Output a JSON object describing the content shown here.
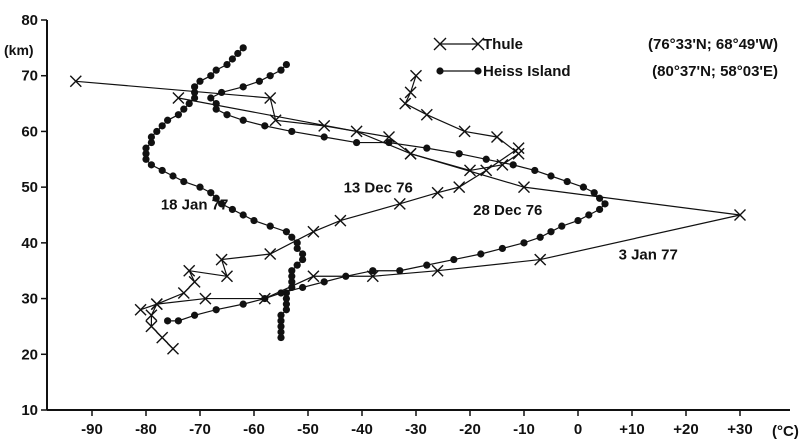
{
  "chart_data": {
    "type": "line",
    "xlabel": "",
    "ylabel": "(km)",
    "x_unit": "(°C)",
    "xlim": [
      -97,
      32
    ],
    "ylim": [
      10,
      80
    ],
    "x_ticks": [
      {
        "value": -90,
        "label": "-90"
      },
      {
        "value": -80,
        "label": "-80"
      },
      {
        "value": -70,
        "label": "-70"
      },
      {
        "value": -60,
        "label": "-60"
      },
      {
        "value": -50,
        "label": "-50"
      },
      {
        "value": -40,
        "label": "-40"
      },
      {
        "value": -30,
        "label": "-30"
      },
      {
        "value": -20,
        "label": "-20"
      },
      {
        "value": -10,
        "label": "-10"
      },
      {
        "value": 0,
        "label": "0"
      },
      {
        "value": 10,
        "label": "+10"
      },
      {
        "value": 20,
        "label": "+20"
      },
      {
        "value": 30,
        "label": "+30"
      }
    ],
    "y_ticks": [
      {
        "value": 10,
        "label": "10"
      },
      {
        "value": 20,
        "label": "20"
      },
      {
        "value": 30,
        "label": "30"
      },
      {
        "value": 40,
        "label": "40"
      },
      {
        "value": 50,
        "label": "50"
      },
      {
        "value": 60,
        "label": "60"
      },
      {
        "value": 70,
        "label": "70"
      },
      {
        "value": 80,
        "label": "80"
      }
    ],
    "legend": [
      {
        "name": "Thule",
        "coords": "(76°33'N; 68°49'W)",
        "marker": "cross"
      },
      {
        "name": "Heiss Island",
        "coords": "(80°37'N; 58°03'E)",
        "marker": "dot"
      }
    ],
    "series": [
      {
        "label": "13 Dec 76",
        "station": "Thule",
        "marker": "cross",
        "points": [
          [
            -75,
            21
          ],
          [
            -77,
            23
          ],
          [
            -79,
            25
          ],
          [
            -79,
            27
          ],
          [
            -78,
            29
          ],
          [
            -73,
            31
          ],
          [
            -71,
            33
          ],
          [
            -72,
            35
          ],
          [
            -65,
            34
          ],
          [
            -66,
            37
          ],
          [
            -57,
            38
          ],
          [
            -49,
            42
          ],
          [
            -44,
            44
          ],
          [
            -33,
            47
          ],
          [
            -26,
            49
          ],
          [
            -22,
            50
          ],
          [
            -17,
            53
          ],
          [
            -11,
            57
          ]
        ]
      },
      {
        "label": "18 Jan 77",
        "station": "Heiss Island",
        "marker": "dot",
        "points": [
          [
            -55,
            23
          ],
          [
            -55,
            24
          ],
          [
            -55,
            25
          ],
          [
            -55,
            26
          ],
          [
            -55,
            27
          ],
          [
            -54,
            28
          ],
          [
            -54,
            29
          ],
          [
            -54,
            30
          ],
          [
            -54,
            31
          ],
          [
            -53,
            32
          ],
          [
            -53,
            33
          ],
          [
            -53,
            34
          ],
          [
            -53,
            35
          ],
          [
            -52,
            36
          ],
          [
            -51,
            37
          ],
          [
            -51,
            38
          ],
          [
            -52,
            39
          ],
          [
            -52,
            40
          ],
          [
            -53,
            41
          ],
          [
            -54,
            42
          ],
          [
            -57,
            43
          ],
          [
            -60,
            44
          ],
          [
            -62,
            45
          ],
          [
            -64,
            46
          ],
          [
            -66,
            47
          ],
          [
            -67,
            48
          ],
          [
            -68,
            49
          ],
          [
            -70,
            50
          ],
          [
            -73,
            51
          ],
          [
            -75,
            52
          ],
          [
            -77,
            53
          ],
          [
            -79,
            54
          ],
          [
            -80,
            55
          ],
          [
            -80,
            56
          ],
          [
            -80,
            57
          ],
          [
            -79,
            58
          ],
          [
            -79,
            59
          ],
          [
            -78,
            60
          ],
          [
            -77,
            61
          ],
          [
            -76,
            62
          ],
          [
            -74,
            63
          ],
          [
            -73,
            64
          ],
          [
            -72,
            65
          ],
          [
            -71,
            66
          ],
          [
            -71,
            67
          ],
          [
            -71,
            68
          ],
          [
            -70,
            69
          ],
          [
            -68,
            70
          ],
          [
            -67,
            71
          ],
          [
            -65,
            72
          ],
          [
            -64,
            73
          ],
          [
            -63,
            74
          ],
          [
            -62,
            75
          ]
        ]
      },
      {
        "label": "28 Dec 76",
        "station": "Heiss Island",
        "marker": "dot",
        "points": [
          [
            -76,
            26
          ],
          [
            -74,
            26
          ],
          [
            -71,
            27
          ],
          [
            -67,
            28
          ],
          [
            -62,
            29
          ],
          [
            -58,
            30
          ],
          [
            -55,
            31
          ],
          [
            -51,
            32
          ],
          [
            -47,
            33
          ],
          [
            -43,
            34
          ],
          [
            -38,
            35
          ],
          [
            -33,
            35
          ],
          [
            -28,
            36
          ],
          [
            -23,
            37
          ],
          [
            -18,
            38
          ],
          [
            -14,
            39
          ],
          [
            -10,
            40
          ],
          [
            -7,
            41
          ],
          [
            -5,
            42
          ],
          [
            -3,
            43
          ],
          [
            0,
            44
          ],
          [
            2,
            45
          ],
          [
            4,
            46
          ],
          [
            5,
            47
          ],
          [
            4,
            48
          ],
          [
            3,
            49
          ],
          [
            1,
            50
          ],
          [
            -2,
            51
          ],
          [
            -5,
            52
          ],
          [
            -8,
            53
          ],
          [
            -12,
            54
          ],
          [
            -17,
            55
          ],
          [
            -22,
            56
          ],
          [
            -28,
            57
          ],
          [
            -35,
            58
          ],
          [
            -41,
            58
          ],
          [
            -47,
            59
          ],
          [
            -53,
            60
          ],
          [
            -58,
            61
          ],
          [
            -62,
            62
          ],
          [
            -65,
            63
          ],
          [
            -67,
            64
          ],
          [
            -67,
            65
          ],
          [
            -68,
            66
          ],
          [
            -66,
            67
          ],
          [
            -62,
            68
          ],
          [
            -59,
            69
          ],
          [
            -57,
            70
          ],
          [
            -55,
            71
          ],
          [
            -54,
            72
          ]
        ]
      },
      {
        "label": "3 Jan 77",
        "station": "Thule",
        "marker": "cross",
        "points": [
          [
            -81,
            28
          ],
          [
            -78,
            29
          ],
          [
            -69,
            30
          ],
          [
            -58,
            30
          ],
          [
            -49,
            34
          ],
          [
            -38,
            34
          ],
          [
            -26,
            35
          ],
          [
            -7,
            37
          ],
          [
            30,
            45
          ],
          [
            -10,
            50
          ],
          [
            -31,
            56
          ],
          [
            -35,
            59
          ],
          [
            -47,
            61
          ],
          [
            -56,
            62
          ],
          [
            -57,
            66
          ],
          [
            -93,
            69
          ]
        ]
      },
      {
        "label": "",
        "station": "Thule",
        "marker": "cross",
        "points": [
          [
            -74,
            66
          ],
          [
            -41,
            60
          ],
          [
            -31,
            56
          ],
          [
            -20,
            53
          ],
          [
            -14,
            54
          ],
          [
            -11,
            56
          ],
          [
            -15,
            59
          ],
          [
            -21,
            60
          ],
          [
            -28,
            63
          ],
          [
            -32,
            65
          ],
          [
            -31,
            67
          ],
          [
            -30,
            70
          ]
        ]
      }
    ],
    "annotations": [
      {
        "text": "18 Jan 77",
        "x": -71,
        "y": 46
      },
      {
        "text": "13 Dec 76",
        "x": -37,
        "y": 49
      },
      {
        "text": "28 Dec 76",
        "x": -13,
        "y": 45
      },
      {
        "text": "3 Jan 77",
        "x": 13,
        "y": 37
      }
    ]
  }
}
